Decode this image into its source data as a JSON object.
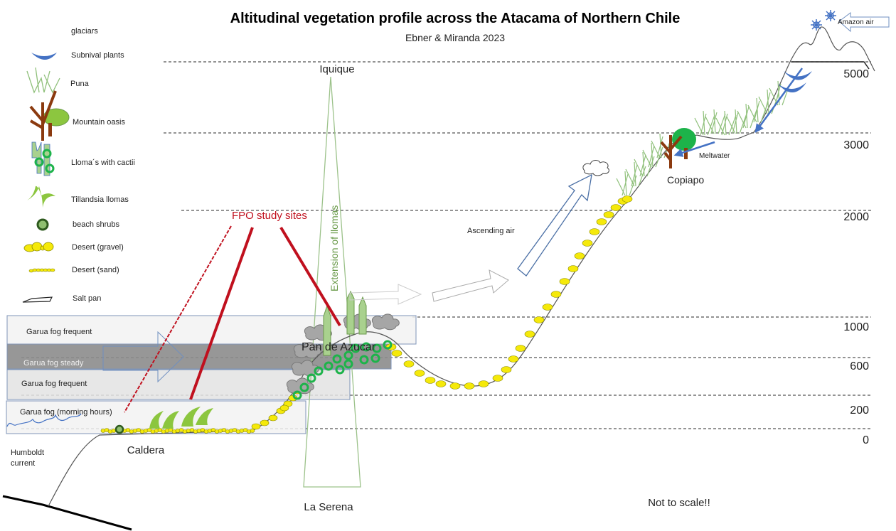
{
  "title": "Altitudinal vegetation profile across the Atacama of Northern Chile",
  "subtitle": "Ebner & Miranda 2023",
  "legend": [
    {
      "label": "glaciars",
      "icon": "glacier-icon"
    },
    {
      "label": "Subnival plants",
      "icon": "subnival-icon"
    },
    {
      "label": "Puna",
      "icon": "puna-grass-icon"
    },
    {
      "label": "Mountain oasis",
      "icon": "mountain-oasis-tree-icon"
    },
    {
      "label": "Lloma´s with cactii",
      "icon": "cactus-icon"
    },
    {
      "label": "Tillandsia llomas",
      "icon": "tillandsia-icon"
    },
    {
      "label": "beach shrubs",
      "icon": "beach-shrub-icon"
    },
    {
      "label": "Desert (gravel)",
      "icon": "gravel-icon"
    },
    {
      "label": "Desert (sand)",
      "icon": "sand-icon"
    },
    {
      "label": "Salt pan",
      "icon": "salt-pan-icon"
    }
  ],
  "altitudes": [
    "5000",
    "3000",
    "2000",
    "1000",
    "600",
    "200",
    "0"
  ],
  "fog_zones": [
    "Garua fog frequent",
    "Garua  fog steady",
    "Garua fog frequent",
    "Garua fog (morning hours)"
  ],
  "places": {
    "iquique": "Iquique",
    "la_serena": "La Serena",
    "caldera": "Caldera",
    "pan_de_azucar": "Pan de Azucar",
    "copiapo": "Copiapo"
  },
  "annotations": {
    "fpo": "FPO study sites",
    "llomas_extension": "Extension of llomas",
    "ascending_air": "Ascending air",
    "meltwater": "Meltwater",
    "amazon_air": "Amazon air",
    "humboldt_1": "Humboldt",
    "humboldt_2": "current",
    "not_to_scale": "Not to scale!!"
  },
  "colors": {
    "fpo_red": "#c0101e",
    "llomas_green": "#6a9a4a",
    "glacier_blue": "#4472c4",
    "desert_yellow": "#f5e90a",
    "oasis_green": "#1db34a",
    "trunk_brown": "#8b3a0f"
  }
}
